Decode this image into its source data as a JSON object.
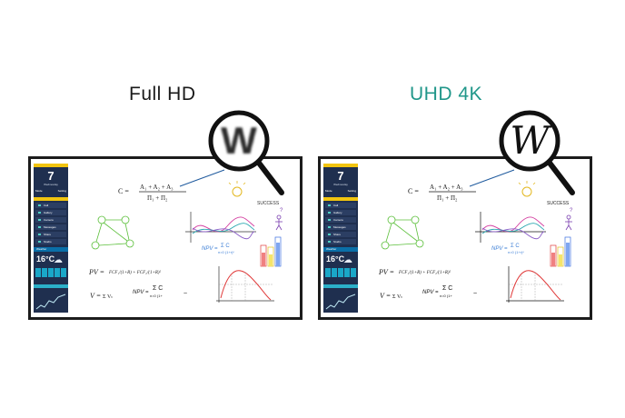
{
  "headings": {
    "full_hd": "Full HD",
    "uhd_4k": "UHD 4K"
  },
  "colors": {
    "uhd_heading": "#21978a",
    "sidebar": "#1f2f4f",
    "accent_yellow": "#f1c40f",
    "teal": "#4fd1c5"
  },
  "magnifier_letter": "W",
  "sidebar": {
    "day_number": "7",
    "date_line": "Wednesday",
    "buttons": [
      "Mode",
      "Setting"
    ],
    "menu_items": [
      "Call",
      "Gallery",
      "Camera",
      "Messages",
      "Share",
      "Studio"
    ],
    "weather_header": "Weather",
    "temperature": "16°C",
    "cloud_icon": "cloud-icon"
  },
  "whiteboard": {
    "formula_c_lhs": "C =",
    "formula_c_num": "A₁ + A₂ + A₃",
    "formula_c_den": "Π₁ + Π₂",
    "success": "SUCCESS",
    "question": "?",
    "npv_label": "NPV =",
    "npv_sum": "Σ C",
    "npv_den": "n=0 (1+r)ⁿ",
    "pv_label": "PV =",
    "pv_terms": "FCF₁/(1+R) + FCF₂/(1+R)²",
    "v_label": "V =",
    "v_sum": "Σ Vₜ",
    "npv2_label": "NPV =",
    "npv2_sum": "Σ C",
    "npv2_den": "n=0 (1+",
    "tilde": "~"
  }
}
